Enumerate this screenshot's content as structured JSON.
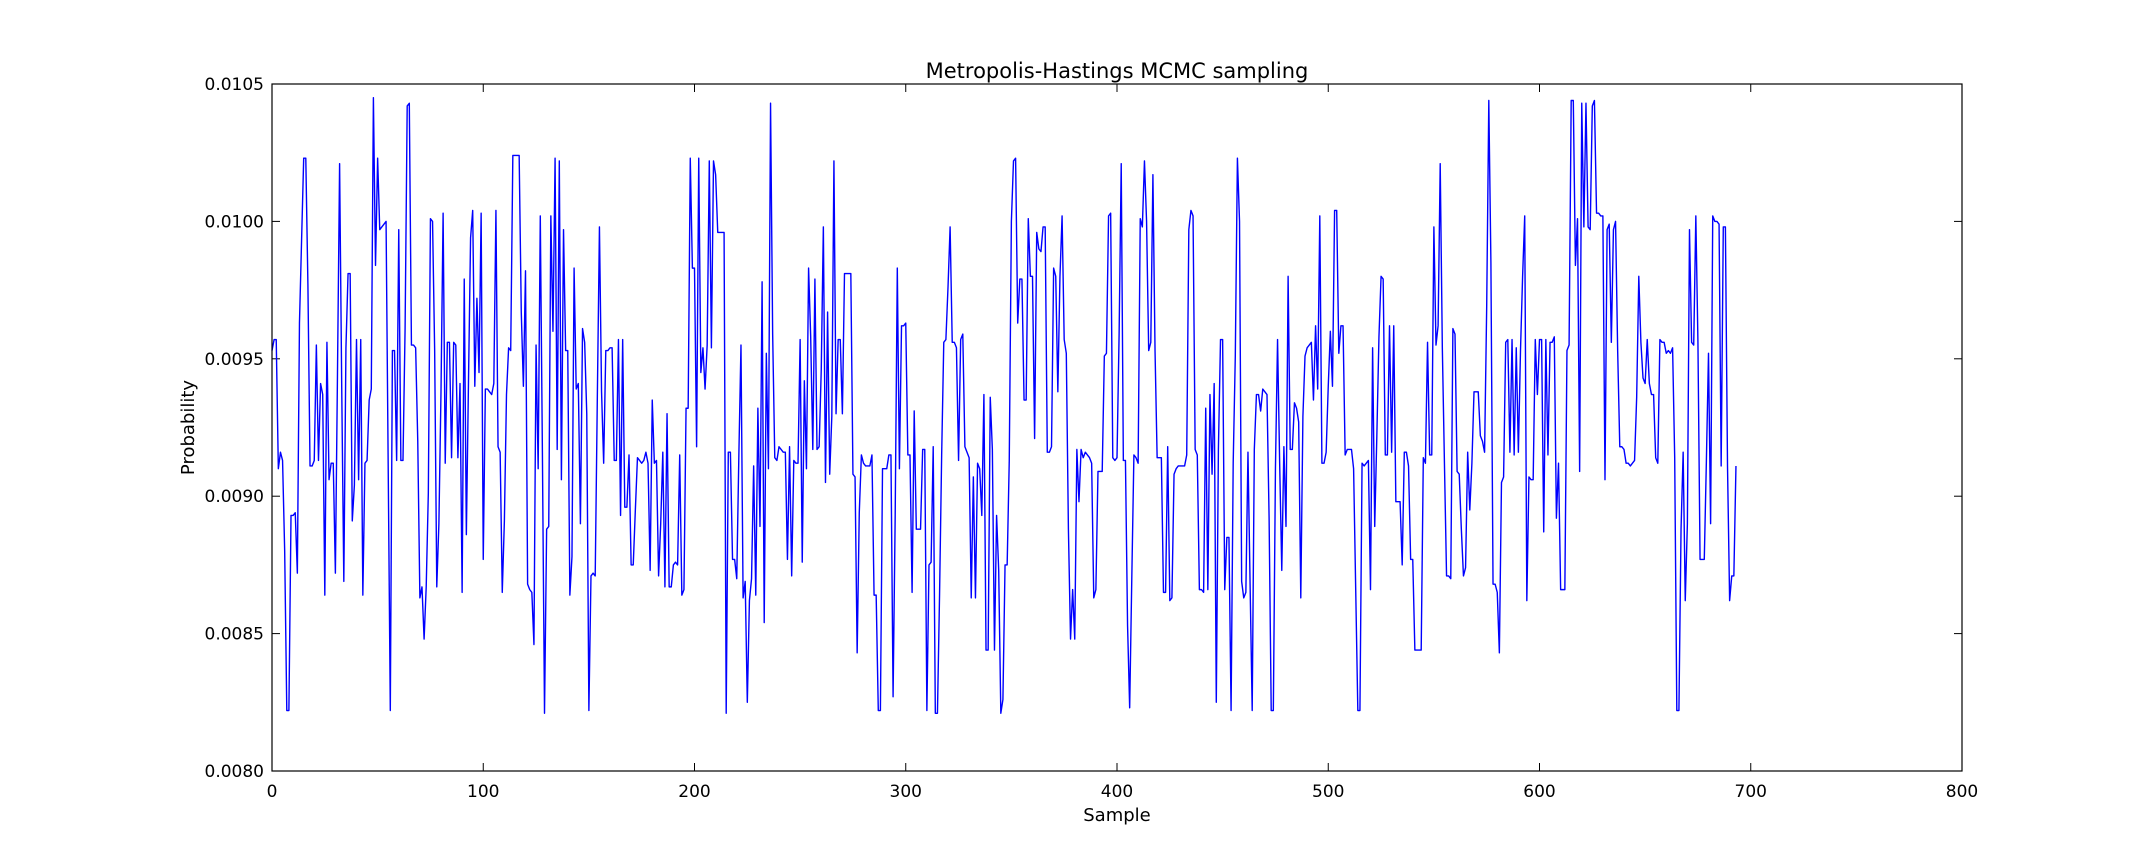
{
  "chart_data": {
    "type": "line",
    "title": "Metropolis-Hastings MCMC sampling",
    "xlabel": "Sample",
    "ylabel": "Probability",
    "xlim": [
      0,
      800
    ],
    "ylim": [
      0.008,
      0.0105
    ],
    "xticks": [
      0,
      100,
      200,
      300,
      400,
      500,
      600,
      700,
      800
    ],
    "xtick_labels": [
      "0",
      "100",
      "200",
      "300",
      "400",
      "500",
      "600",
      "700",
      "800"
    ],
    "yticks": [
      0.008,
      0.0085,
      0.009,
      0.0095,
      0.01,
      0.0105
    ],
    "ytick_labels": [
      "0.0080",
      "0.0085",
      "0.0090",
      "0.0095",
      "0.0100",
      "0.0105"
    ],
    "grid": false,
    "line_color": "#0000ff",
    "series": [
      {
        "x_start": 0,
        "x_step": 1,
        "values": [
          0.00953,
          0.00957,
          0.00957,
          0.0091,
          0.00916,
          0.00913,
          0.0088,
          0.00822,
          0.00822,
          0.00893,
          0.00893,
          0.00894,
          0.00872,
          0.00963,
          0.00993,
          0.01023,
          0.01023,
          0.00977,
          0.00911,
          0.00911,
          0.00913,
          0.00955,
          0.00913,
          0.00941,
          0.00937,
          0.00864,
          0.00956,
          0.00906,
          0.00912,
          0.00912,
          0.00872,
          0.00945,
          0.01021,
          0.0094,
          0.00869,
          0.00954,
          0.00981,
          0.00981,
          0.00891,
          0.00904,
          0.00957,
          0.00906,
          0.00957,
          0.00864,
          0.00912,
          0.00913,
          0.00935,
          0.00939,
          0.01045,
          0.00984,
          0.01023,
          0.00997,
          0.00998,
          0.00999,
          0.01,
          0.00911,
          0.00822,
          0.00953,
          0.00953,
          0.00913,
          0.00997,
          0.00913,
          0.00913,
          0.00961,
          0.01042,
          0.01043,
          0.00955,
          0.00955,
          0.00954,
          0.0092,
          0.00863,
          0.00867,
          0.00848,
          0.00867,
          0.00901,
          0.01001,
          0.01,
          0.00953,
          0.00867,
          0.0089,
          0.00938,
          0.01003,
          0.00912,
          0.00956,
          0.00956,
          0.00914,
          0.00956,
          0.00955,
          0.00914,
          0.00941,
          0.00865,
          0.00979,
          0.00886,
          0.00941,
          0.00994,
          0.01004,
          0.0094,
          0.00972,
          0.00945,
          0.01003,
          0.00877,
          0.00939,
          0.00939,
          0.00938,
          0.00937,
          0.00941,
          0.01004,
          0.00918,
          0.00916,
          0.00865,
          0.00891,
          0.00937,
          0.00954,
          0.00953,
          0.01024,
          0.01024,
          0.01024,
          0.01024,
          0.00967,
          0.0094,
          0.00982,
          0.00868,
          0.00866,
          0.00865,
          0.00846,
          0.00955,
          0.0091,
          0.01002,
          0.00916,
          0.00821,
          0.00888,
          0.00889,
          0.01002,
          0.0096,
          0.01023,
          0.00917,
          0.01022,
          0.00906,
          0.00997,
          0.00953,
          0.00953,
          0.00864,
          0.00878,
          0.00983,
          0.00939,
          0.00941,
          0.0089,
          0.00961,
          0.00956,
          0.0093,
          0.00822,
          0.00871,
          0.00872,
          0.00871,
          0.00936,
          0.00998,
          0.00938,
          0.00912,
          0.00953,
          0.00953,
          0.00954,
          0.00954,
          0.00913,
          0.00913,
          0.00957,
          0.00893,
          0.00957,
          0.00896,
          0.00896,
          0.00915,
          0.00875,
          0.00875,
          0.00895,
          0.00914,
          0.00913,
          0.00912,
          0.00913,
          0.00916,
          0.00912,
          0.00873,
          0.00935,
          0.00912,
          0.00913,
          0.00871,
          0.0089,
          0.00916,
          0.00867,
          0.0093,
          0.00867,
          0.00867,
          0.00875,
          0.00876,
          0.00875,
          0.00915,
          0.00864,
          0.00866,
          0.00932,
          0.00932,
          0.01023,
          0.00983,
          0.00983,
          0.00918,
          0.01023,
          0.00945,
          0.00954,
          0.00939,
          0.00955,
          0.01022,
          0.00954,
          0.01022,
          0.01017,
          0.00996,
          0.00996,
          0.00996,
          0.00996,
          0.00821,
          0.00916,
          0.00916,
          0.00877,
          0.00877,
          0.0087,
          0.00915,
          0.00955,
          0.00863,
          0.00869,
          0.00825,
          0.00862,
          0.0087,
          0.00911,
          0.00864,
          0.00932,
          0.00889,
          0.00978,
          0.00854,
          0.00952,
          0.0091,
          0.01043,
          0.00959,
          0.00914,
          0.00913,
          0.00918,
          0.00917,
          0.00916,
          0.00916,
          0.00877,
          0.00918,
          0.00871,
          0.00913,
          0.00912,
          0.00912,
          0.00957,
          0.00876,
          0.00942,
          0.0091,
          0.00983,
          0.00958,
          0.00917,
          0.00979,
          0.00917,
          0.00918,
          0.00946,
          0.00998,
          0.00905,
          0.00967,
          0.00908,
          0.00929,
          0.01022,
          0.0093,
          0.00957,
          0.00957,
          0.0093,
          0.00981,
          0.00981,
          0.00981,
          0.00981,
          0.00908,
          0.00907,
          0.00843,
          0.00894,
          0.00915,
          0.00912,
          0.00911,
          0.00911,
          0.00911,
          0.00915,
          0.00864,
          0.00864,
          0.00822,
          0.00822,
          0.0091,
          0.0091,
          0.0091,
          0.00915,
          0.00915,
          0.00827,
          0.00893,
          0.00983,
          0.0091,
          0.00962,
          0.00962,
          0.00963,
          0.00915,
          0.00915,
          0.00865,
          0.00931,
          0.00888,
          0.00888,
          0.00888,
          0.00917,
          0.00917,
          0.00822,
          0.00875,
          0.00876,
          0.00918,
          0.00821,
          0.00821,
          0.00864,
          0.00915,
          0.00956,
          0.00957,
          0.00976,
          0.00998,
          0.00956,
          0.00956,
          0.00954,
          0.00913,
          0.00957,
          0.00959,
          0.00918,
          0.00916,
          0.00914,
          0.00863,
          0.00907,
          0.00863,
          0.00912,
          0.0091,
          0.00893,
          0.00937,
          0.00844,
          0.00844,
          0.00936,
          0.00917,
          0.00844,
          0.00893,
          0.00873,
          0.00821,
          0.00826,
          0.00875,
          0.00875,
          0.00913,
          0.01,
          0.01022,
          0.01023,
          0.00963,
          0.00979,
          0.00979,
          0.00935,
          0.00935,
          0.01001,
          0.0098,
          0.0098,
          0.00921,
          0.00996,
          0.0099,
          0.00989,
          0.00998,
          0.00998,
          0.00916,
          0.00916,
          0.00918,
          0.00983,
          0.0098,
          0.00938,
          0.0098,
          0.01002,
          0.00957,
          0.00952,
          0.00888,
          0.00848,
          0.00866,
          0.00848,
          0.00917,
          0.00898,
          0.00917,
          0.00914,
          0.00916,
          0.00915,
          0.00914,
          0.00912,
          0.00863,
          0.00866,
          0.00909,
          0.00909,
          0.00909,
          0.00951,
          0.00952,
          0.01002,
          0.01003,
          0.00914,
          0.00913,
          0.00914,
          0.00959,
          0.01021,
          0.00913,
          0.00913,
          0.00853,
          0.00823,
          0.0087,
          0.00915,
          0.00914,
          0.00912,
          0.01001,
          0.00998,
          0.01022,
          0.01,
          0.00953,
          0.00956,
          0.01017,
          0.00953,
          0.00914,
          0.00914,
          0.00914,
          0.00865,
          0.00865,
          0.00918,
          0.00862,
          0.00863,
          0.00908,
          0.0091,
          0.00911,
          0.00911,
          0.00911,
          0.00911,
          0.00915,
          0.00997,
          0.01004,
          0.01002,
          0.00917,
          0.00915,
          0.00866,
          0.00866,
          0.00865,
          0.00932,
          0.00866,
          0.00937,
          0.00908,
          0.00941,
          0.00825,
          0.00917,
          0.00957,
          0.00957,
          0.00866,
          0.00885,
          0.00885,
          0.00822,
          0.00912,
          0.00951,
          0.01023,
          0.01,
          0.00869,
          0.00863,
          0.00865,
          0.00916,
          0.00868,
          0.00822,
          0.00917,
          0.00937,
          0.00937,
          0.00931,
          0.00939,
          0.00938,
          0.00937,
          0.00892,
          0.00822,
          0.00822,
          0.0091,
          0.00957,
          0.00912,
          0.00873,
          0.00918,
          0.00889,
          0.0098,
          0.00917,
          0.00917,
          0.00934,
          0.00932,
          0.00927,
          0.00863,
          0.00929,
          0.00951,
          0.00954,
          0.00955,
          0.00956,
          0.00935,
          0.00962,
          0.00939,
          0.01002,
          0.00912,
          0.00912,
          0.00916,
          0.0094,
          0.0096,
          0.0094,
          0.01004,
          0.01004,
          0.00952,
          0.00962,
          0.00962,
          0.00915,
          0.00917,
          0.00917,
          0.00917,
          0.0091,
          0.00866,
          0.00822,
          0.00822,
          0.00912,
          0.00911,
          0.00912,
          0.00913,
          0.00866,
          0.00954,
          0.00889,
          0.00922,
          0.00958,
          0.0098,
          0.00979,
          0.00915,
          0.00915,
          0.00962,
          0.00916,
          0.00962,
          0.00898,
          0.00898,
          0.00898,
          0.00875,
          0.00916,
          0.00916,
          0.00911,
          0.00877,
          0.00877,
          0.00844,
          0.00844,
          0.00844,
          0.00844,
          0.00914,
          0.00912,
          0.00956,
          0.00915,
          0.00915,
          0.00998,
          0.00955,
          0.00962,
          0.01021,
          0.00954,
          0.00912,
          0.00871,
          0.00871,
          0.0087,
          0.00961,
          0.00959,
          0.00909,
          0.00908,
          0.00888,
          0.00871,
          0.00874,
          0.00916,
          0.00895,
          0.00912,
          0.00938,
          0.00938,
          0.00938,
          0.00922,
          0.0092,
          0.00916,
          0.00969,
          0.01044,
          0.00985,
          0.00868,
          0.00868,
          0.00865,
          0.00843,
          0.00905,
          0.00907,
          0.00956,
          0.00957,
          0.00916,
          0.00957,
          0.00915,
          0.00954,
          0.00916,
          0.00953,
          0.0098,
          0.01002,
          0.00862,
          0.00907,
          0.00906,
          0.00906,
          0.00957,
          0.00937,
          0.00957,
          0.00957,
          0.00887,
          0.00957,
          0.00915,
          0.00956,
          0.00956,
          0.00958,
          0.00892,
          0.00912,
          0.00866,
          0.00866,
          0.00866,
          0.00953,
          0.00955,
          0.01044,
          0.01044,
          0.00984,
          0.01001,
          0.00909,
          0.01043,
          0.00998,
          0.01043,
          0.00998,
          0.00997,
          0.01042,
          0.01044,
          0.01003,
          0.01003,
          0.01002,
          0.01002,
          0.00906,
          0.00997,
          0.00999,
          0.00956,
          0.00997,
          0.01,
          0.00953,
          0.00918,
          0.00918,
          0.00917,
          0.00912,
          0.00912,
          0.00911,
          0.00912,
          0.00913,
          0.00936,
          0.0098,
          0.00956,
          0.00943,
          0.00941,
          0.00957,
          0.00941,
          0.00937,
          0.00937,
          0.00914,
          0.00912,
          0.00957,
          0.00956,
          0.00956,
          0.00952,
          0.00953,
          0.00952,
          0.00954,
          0.00914,
          0.00822,
          0.00822,
          0.00888,
          0.00916,
          0.00862,
          0.0089,
          0.00997,
          0.00956,
          0.00955,
          0.01002,
          0.00956,
          0.00877,
          0.00877,
          0.00877,
          0.00913,
          0.00952,
          0.0089,
          0.01002,
          0.01,
          0.01,
          0.00999,
          0.00911,
          0.00998,
          0.00998,
          0.00911,
          0.00862,
          0.00871,
          0.00871,
          0.00911
        ]
      }
    ]
  }
}
